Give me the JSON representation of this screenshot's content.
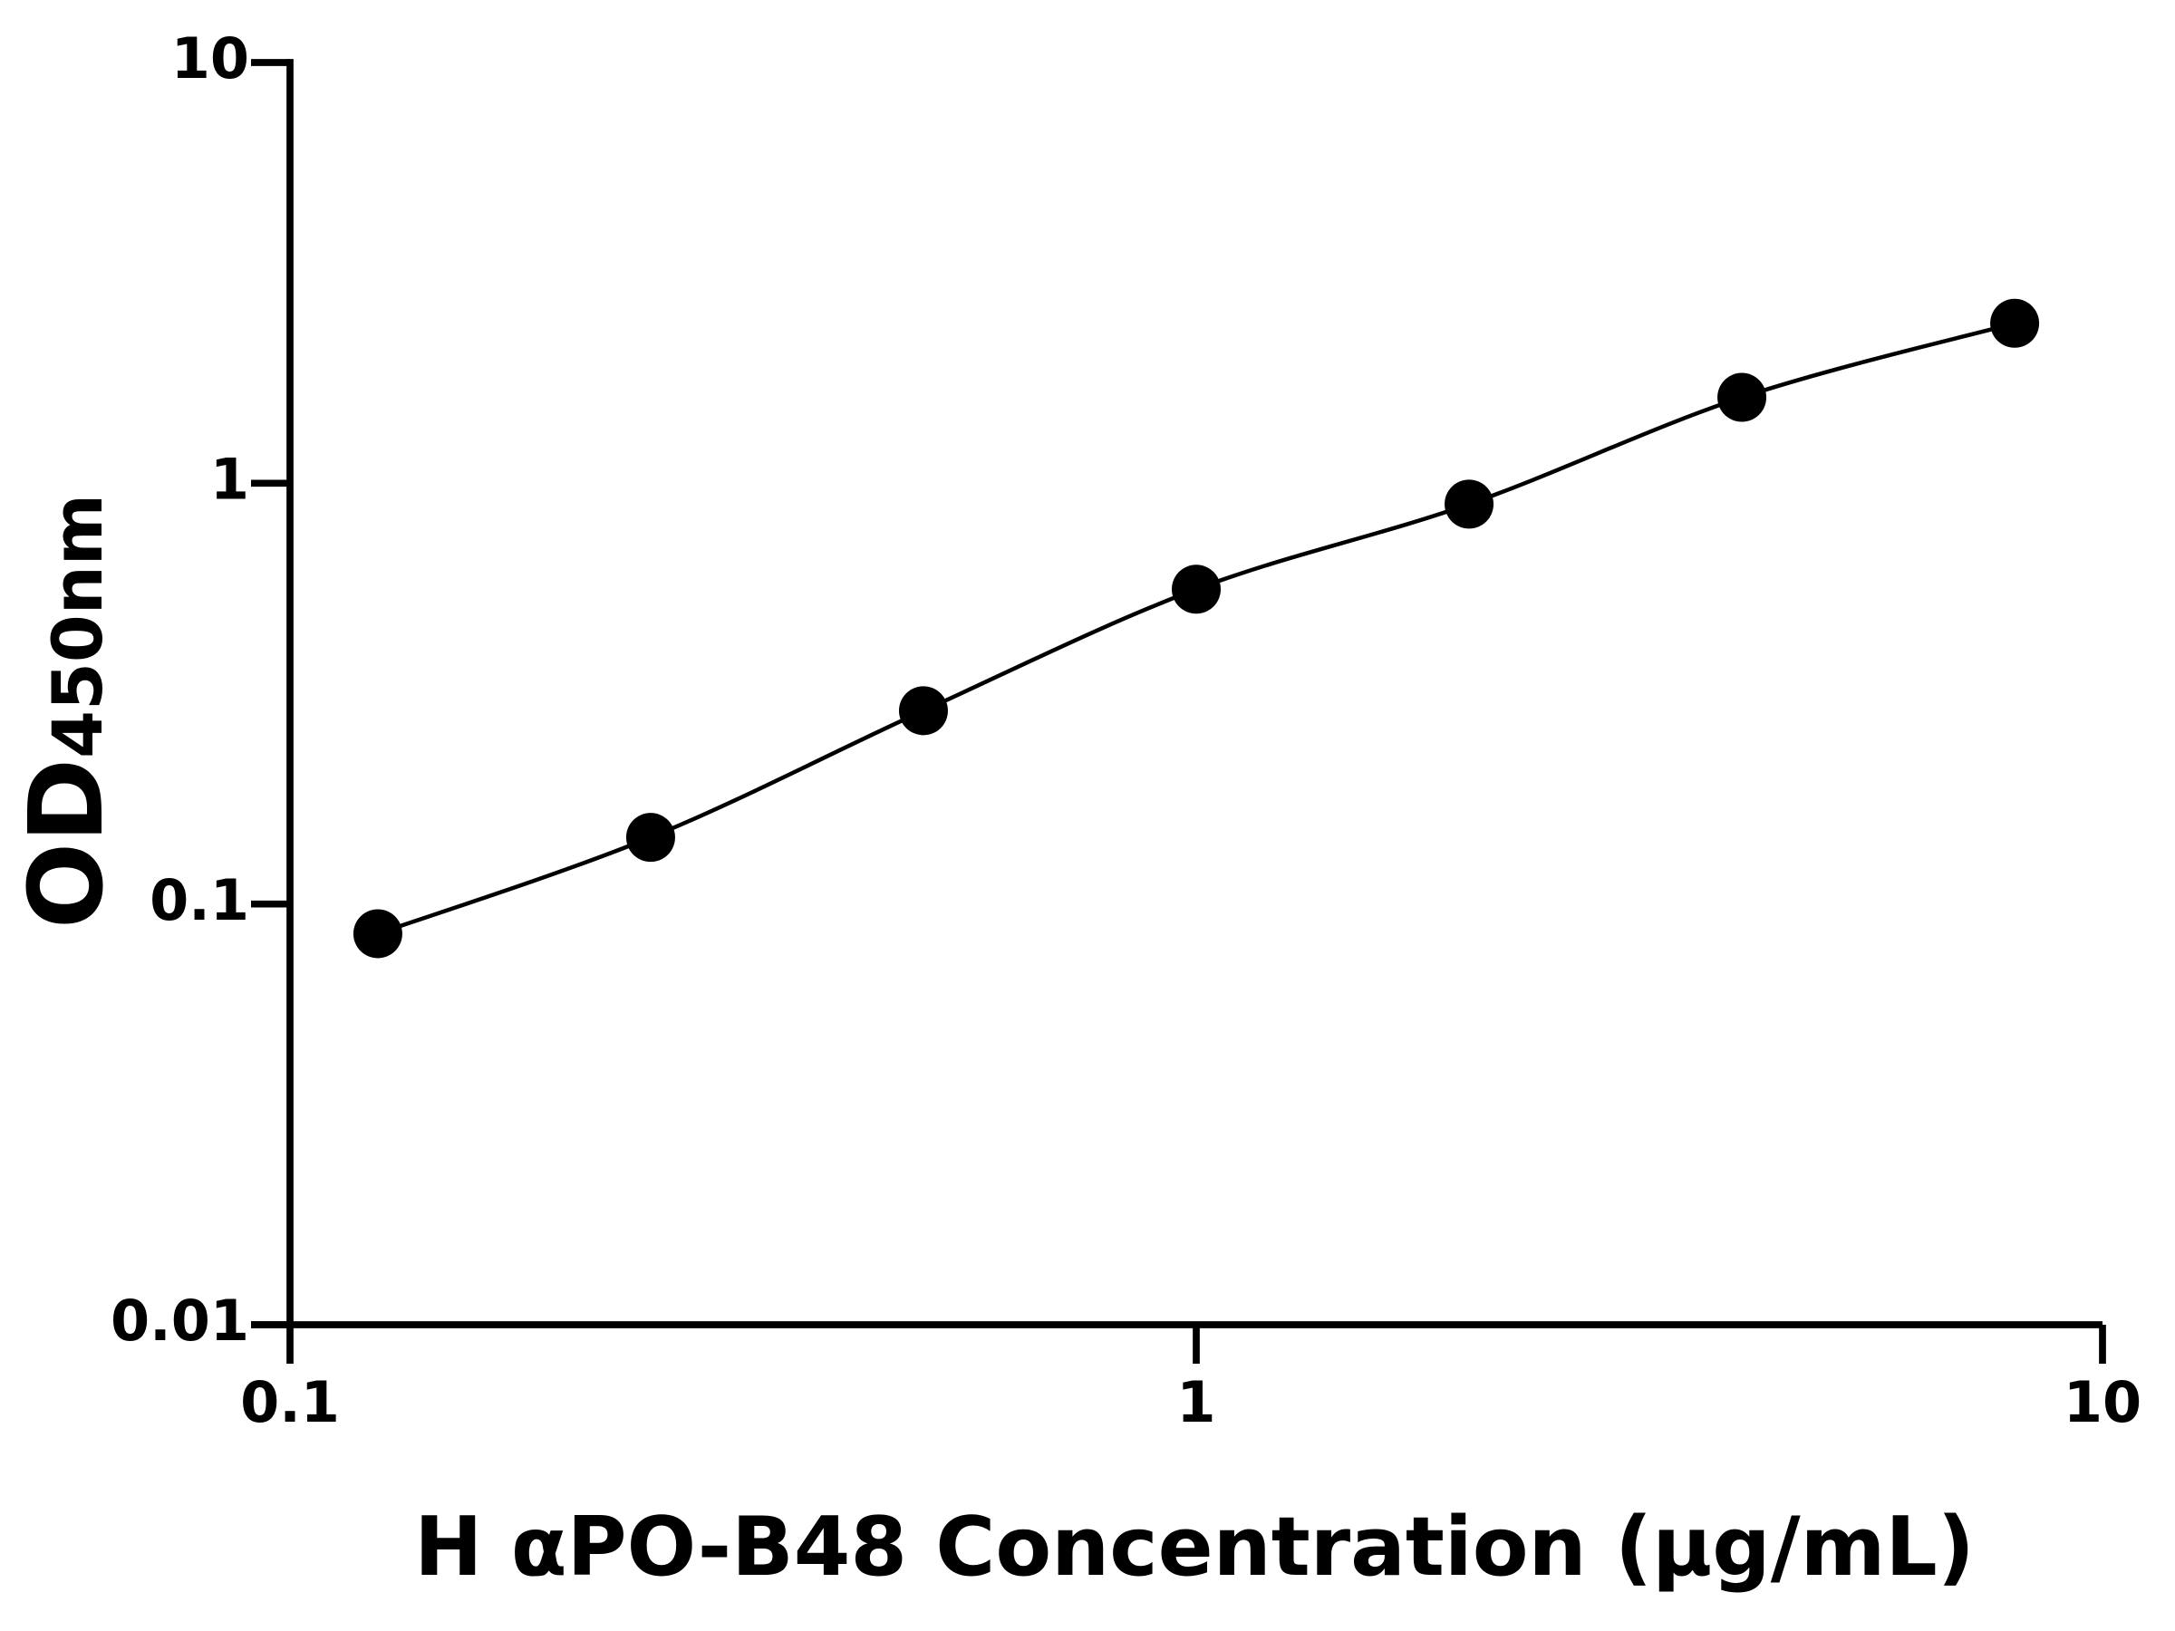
{
  "chart_data": {
    "type": "scatter",
    "xlabel": "H αPO-B48 Concentration (μg/mL)",
    "ylabel": "OD",
    "ylabel_subscript": "450nm",
    "x": [
      0.125,
      0.25,
      0.5,
      1,
      2,
      4,
      8
    ],
    "values": [
      0.085,
      0.144,
      0.288,
      0.56,
      0.892,
      1.6,
      2.4
    ],
    "color": "#000000",
    "curve": true,
    "xscale": "log",
    "yscale": "log",
    "xlim": [
      0.1,
      10
    ],
    "xticks": [
      0.1,
      1,
      10
    ],
    "ylim": [
      0.01,
      10
    ],
    "yticks": [
      0.01,
      0.1,
      1,
      10
    ]
  }
}
